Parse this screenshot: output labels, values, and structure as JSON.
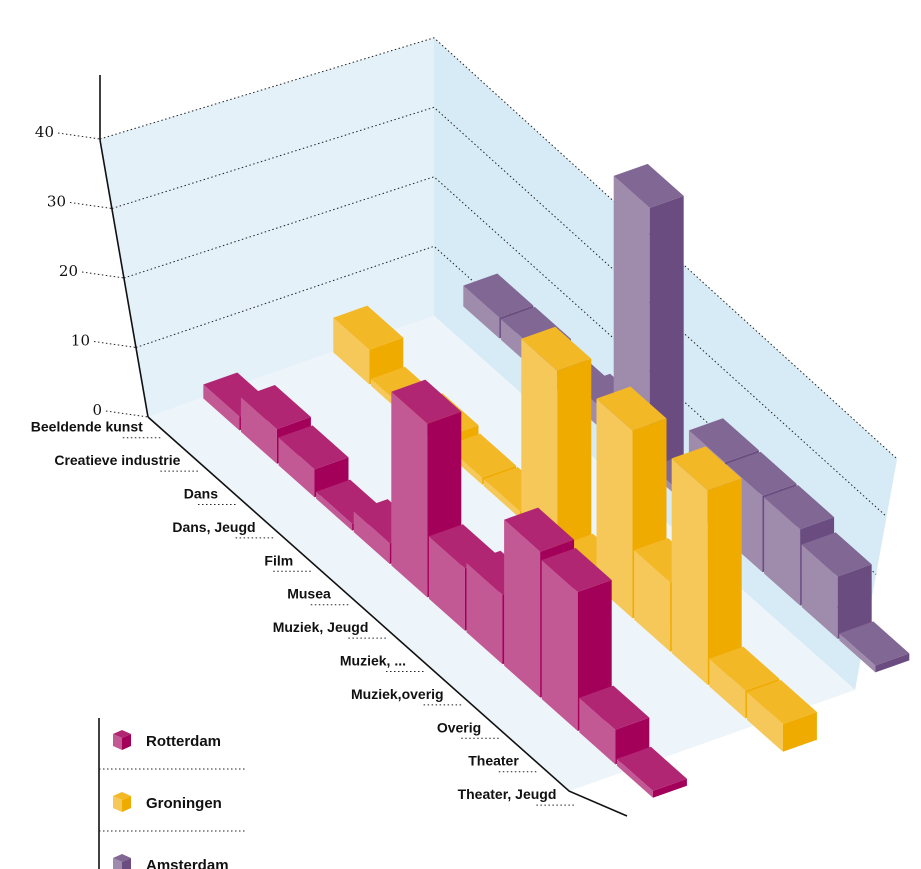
{
  "chart_data": {
    "type": "bar",
    "subtype": "3d-column",
    "title": "",
    "xlabel": "",
    "ylabel": "",
    "ylim": [
      0,
      40
    ],
    "yticks": [
      "0",
      "10",
      "20",
      "30",
      "40"
    ],
    "grid": true,
    "legend_position": "bottom-left",
    "categories": [
      "Beeldende kunst",
      "Creatieve industrie",
      "Dans",
      "Dans, Jeugd",
      "Film",
      "Musea",
      "Muziek, Jeugd",
      "Muziek, ...",
      "Muziek,overig",
      "Overig",
      "Theater",
      "Theater, Jeugd"
    ],
    "series": [
      {
        "name": "Rotterdam",
        "color": "#a3005a",
        "values": [
          2,
          5,
          4,
          1,
          3,
          25,
          9,
          10,
          21,
          20,
          5,
          1
        ]
      },
      {
        "name": "Groningen",
        "color": "#f0ab00",
        "values": [
          5,
          1,
          2,
          1,
          1,
          26,
          1,
          27,
          10,
          28,
          4,
          4
        ]
      },
      {
        "name": "Amsterdam",
        "color": "#6b4c80",
        "values": [
          3,
          3,
          2,
          3,
          38,
          1,
          11,
          11,
          11,
          9,
          1,
          0
        ]
      }
    ]
  }
}
